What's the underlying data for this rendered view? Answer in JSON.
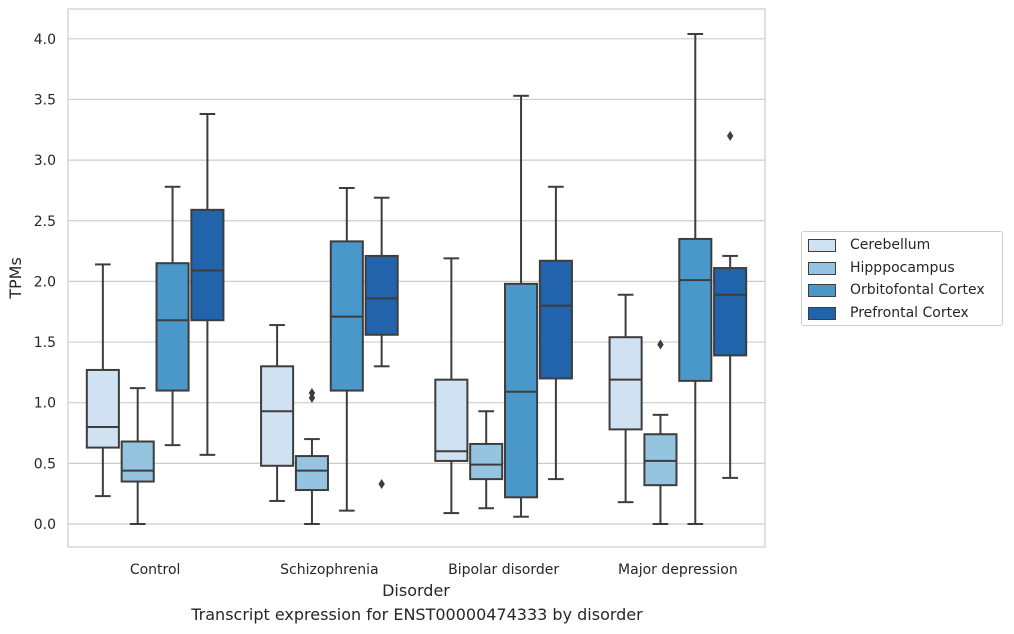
{
  "chart_data": {
    "type": "box",
    "title": "",
    "caption": "Transcript expression for ENST00000474333 by disorder",
    "xlabel": "Disorder",
    "ylabel": "TPMs",
    "ylim": [
      -0.2,
      4.25
    ],
    "yticks": [
      "0.0",
      "0.5",
      "1.0",
      "1.5",
      "2.0",
      "2.5",
      "3.0",
      "3.5",
      "4.0"
    ],
    "grid": "horizontal",
    "legend_position": "right",
    "categories": [
      "Control",
      "Schizophrenia",
      "Bipolar disorder",
      "Major depression"
    ],
    "series": [
      {
        "name": "Cerebellum",
        "color": "#d0e1f2",
        "boxes": [
          {
            "whislo": 0.23,
            "q1": 0.63,
            "med": 0.8,
            "q3": 1.27,
            "whishi": 2.14,
            "fliers": []
          },
          {
            "whislo": 0.19,
            "q1": 0.48,
            "med": 0.93,
            "q3": 1.3,
            "whishi": 1.64,
            "fliers": []
          },
          {
            "whislo": 0.09,
            "q1": 0.52,
            "med": 0.6,
            "q3": 1.19,
            "whishi": 2.19,
            "fliers": []
          },
          {
            "whislo": 0.18,
            "q1": 0.78,
            "med": 1.19,
            "q3": 1.54,
            "whishi": 1.89,
            "fliers": []
          }
        ]
      },
      {
        "name": "Hipppocampus",
        "color": "#94c4df",
        "boxes": [
          {
            "whislo": 0.0,
            "q1": 0.35,
            "med": 0.44,
            "q3": 0.68,
            "whishi": 1.12,
            "fliers": []
          },
          {
            "whislo": 0.0,
            "q1": 0.28,
            "med": 0.44,
            "q3": 0.56,
            "whishi": 0.7,
            "fliers": [
              1.04,
              1.08
            ]
          },
          {
            "whislo": 0.13,
            "q1": 0.37,
            "med": 0.49,
            "q3": 0.66,
            "whishi": 0.93,
            "fliers": []
          },
          {
            "whislo": 0.0,
            "q1": 0.32,
            "med": 0.52,
            "q3": 0.74,
            "whishi": 0.9,
            "fliers": [
              1.48
            ]
          }
        ]
      },
      {
        "name": "Orbitofontal Cortex",
        "color": "#4a98c9",
        "boxes": [
          {
            "whislo": 0.65,
            "q1": 1.1,
            "med": 1.68,
            "q3": 2.15,
            "whishi": 2.78,
            "fliers": []
          },
          {
            "whislo": 0.11,
            "q1": 1.1,
            "med": 1.71,
            "q3": 2.33,
            "whishi": 2.77,
            "fliers": []
          },
          {
            "whislo": 0.06,
            "q1": 0.22,
            "med": 1.09,
            "q3": 1.98,
            "whishi": 3.53,
            "fliers": []
          },
          {
            "whislo": 0.0,
            "q1": 1.18,
            "med": 2.01,
            "q3": 2.35,
            "whishi": 4.04,
            "fliers": []
          }
        ]
      },
      {
        "name": "Prefrontal Cortex",
        "color": "#2164ab",
        "boxes": [
          {
            "whislo": 0.57,
            "q1": 1.68,
            "med": 2.09,
            "q3": 2.59,
            "whishi": 3.38,
            "fliers": []
          },
          {
            "whislo": 1.3,
            "q1": 1.56,
            "med": 1.86,
            "q3": 2.21,
            "whishi": 2.69,
            "fliers": [
              0.33
            ]
          },
          {
            "whislo": 0.37,
            "q1": 1.2,
            "med": 1.8,
            "q3": 2.17,
            "whishi": 2.78,
            "fliers": []
          },
          {
            "whislo": 0.38,
            "q1": 1.39,
            "med": 1.89,
            "q3": 2.11,
            "whishi": 2.21,
            "fliers": [
              3.2
            ]
          }
        ]
      }
    ]
  }
}
